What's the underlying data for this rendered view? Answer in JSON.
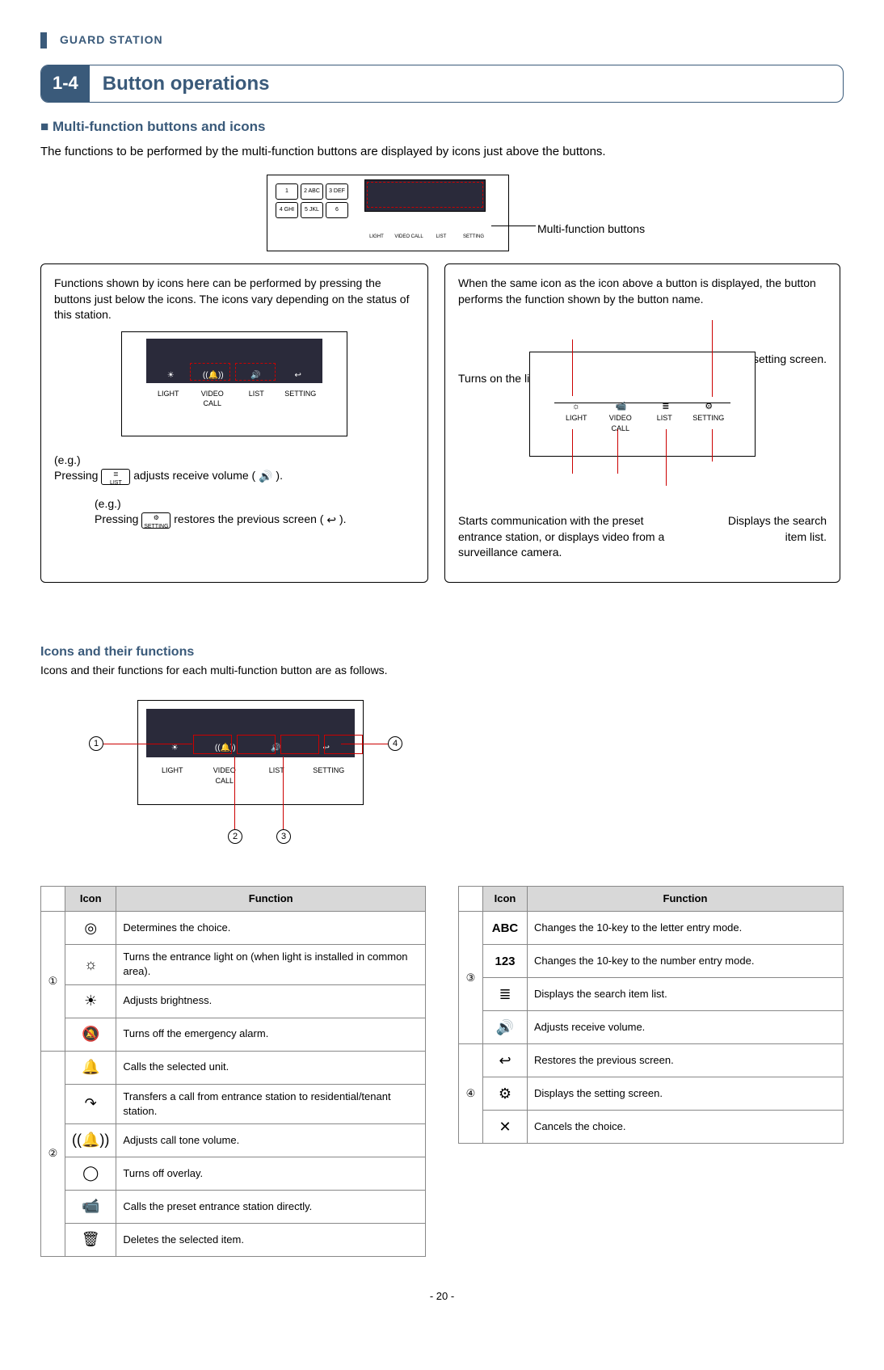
{
  "header": {
    "running": "GUARD STATION"
  },
  "section": {
    "num": "1-4",
    "title": "Button operations"
  },
  "subsection": {
    "prefix": "■",
    "title": "Multi-function buttons and icons"
  },
  "intro": "The functions to be performed by the multi-function buttons are displayed by icons just above the buttons.",
  "mf_buttons_label": "Multi-function buttons",
  "callout_left": {
    "text": "Functions shown by icons here can be performed by pressing the buttons just below the icons. The icons vary depending on the status of this station.",
    "eg1_label": "(e.g.)",
    "eg1_pressing": "Pressing",
    "eg1_btn": "LIST",
    "eg1_rest": " adjusts receive volume ( ",
    "eg1_icon": "🔊",
    "eg1_end": " ).",
    "eg2_label": "(e.g.)",
    "eg2_pressing": "Pressing",
    "eg2_btn": "SETTING",
    "eg2_rest": " restores the previous screen ( ",
    "eg2_icon": "↩",
    "eg2_end": " )."
  },
  "callout_right": {
    "text": "When the same icon as the icon above a button is displayed, the button performs the function shown by the button name.",
    "l_setting": "Displays the setting screen.",
    "l_light": "Turns on the light at an entrance station.",
    "l_video": "Starts communication with the preset entrance station, or displays video from a surveillance camera.",
    "l_list": "Displays the search item list."
  },
  "button_labels": {
    "light": "LIGHT",
    "video": "VIDEO CALL",
    "list": "LIST",
    "setting": "SETTING"
  },
  "keypad": [
    "1",
    "2 ABC",
    "3 DEF",
    "4 GHI",
    "5 JKL",
    "6"
  ],
  "icons_section": {
    "title": "Icons and their functions",
    "desc": "Icons and their functions for each multi-function button are as follows."
  },
  "circles": {
    "1": "1",
    "2": "2",
    "3": "3",
    "4": "4"
  },
  "table_headers": {
    "icon": "Icon",
    "func": "Function"
  },
  "table_left": [
    {
      "grp": "①",
      "icon": "◎",
      "func": "Determines the choice."
    },
    {
      "grp": "",
      "icon": "☼",
      "func": "Turns the entrance light on (when light is installed in common area)."
    },
    {
      "grp": "",
      "icon": "☀",
      "func": "Adjusts brightness."
    },
    {
      "grp": "",
      "icon": "🔕",
      "func": "Turns off the emergency alarm."
    },
    {
      "grp": "②",
      "icon": "🔔",
      "func": "Calls the selected unit."
    },
    {
      "grp": "",
      "icon": "↷",
      "func": "Transfers a call from entrance station to residential/tenant station."
    },
    {
      "grp": "",
      "icon": "((🔔))",
      "func": "Adjusts call tone volume."
    },
    {
      "grp": "",
      "icon": "◯",
      "func": "Turns off overlay."
    },
    {
      "grp": "",
      "icon": "📹",
      "func": "Calls the preset entrance station directly."
    },
    {
      "grp": "",
      "icon": "🗑",
      "func": "Deletes the selected item."
    }
  ],
  "table_right": [
    {
      "grp": "③",
      "icon": "ABC",
      "bold": true,
      "func": "Changes the 10-key to the letter entry mode."
    },
    {
      "grp": "",
      "icon": "123",
      "bold": true,
      "func": "Changes the 10-key to the number entry mode."
    },
    {
      "grp": "",
      "icon": "≣",
      "func": "Displays the search item list."
    },
    {
      "grp": "",
      "icon": "🔊",
      "func": "Adjusts receive volume."
    },
    {
      "grp": "④",
      "icon": "↩",
      "func": "Restores the previous screen."
    },
    {
      "grp": "",
      "icon": "⚙",
      "func": "Displays the setting screen."
    },
    {
      "grp": "",
      "icon": "✕",
      "func": "Cancels the choice."
    }
  ],
  "page_number": "- 20 -",
  "colors": {
    "brand": "#3a5a7a",
    "dash_red": "#c00",
    "table_head_bg": "#d8d8d8",
    "table_border": "#888",
    "screen_bg": "#2a2a3a"
  }
}
